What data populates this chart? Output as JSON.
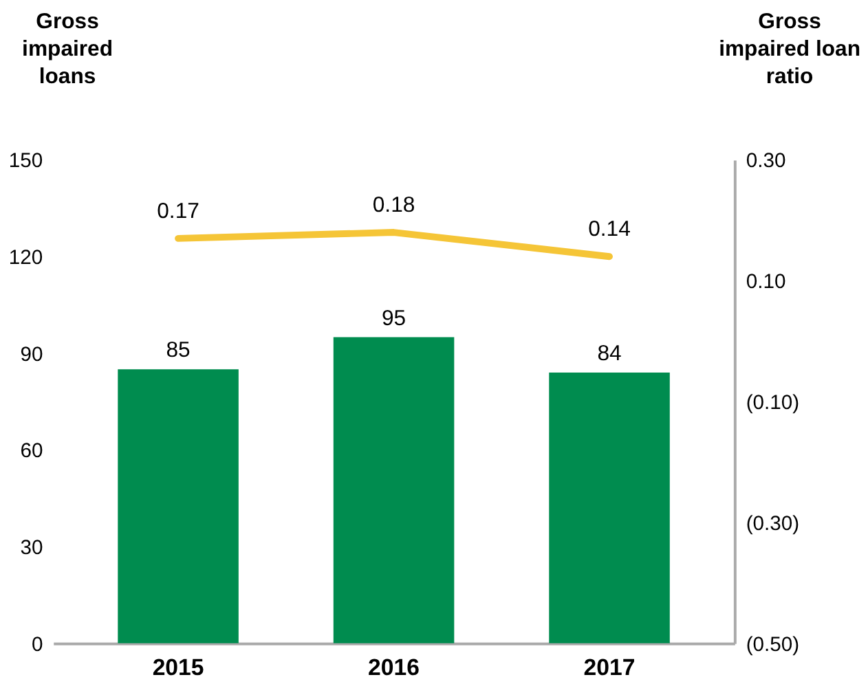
{
  "chart_data": {
    "type": "bar",
    "categories": [
      "2015",
      "2016",
      "2017"
    ],
    "ylabel": "Gross impaired loans",
    "y2label": "Gross impaired loan ratio",
    "series": [
      {
        "color": "#008c4f",
        "values": [
          85,
          95,
          84
        ]
      },
      {
        "type": "line",
        "axis": "y2",
        "color": "#f5c537",
        "values": [
          0.17,
          0.18,
          0.14
        ]
      }
    ],
    "ylim": [
      0,
      150
    ],
    "yticks": [
      0,
      30,
      60,
      90,
      120,
      150
    ],
    "y2lim": [
      -0.5,
      0.3
    ],
    "y2ticks": [
      {
        "value": -0.5,
        "label": "(0.50)"
      },
      {
        "value": -0.3,
        "label": "(0.30)"
      },
      {
        "value": -0.1,
        "label": "(0.10)"
      },
      {
        "value": 0.1,
        "label": "0.10"
      },
      {
        "value": 0.3,
        "label": "0.30"
      }
    ],
    "data_labels": true,
    "grid": false
  }
}
